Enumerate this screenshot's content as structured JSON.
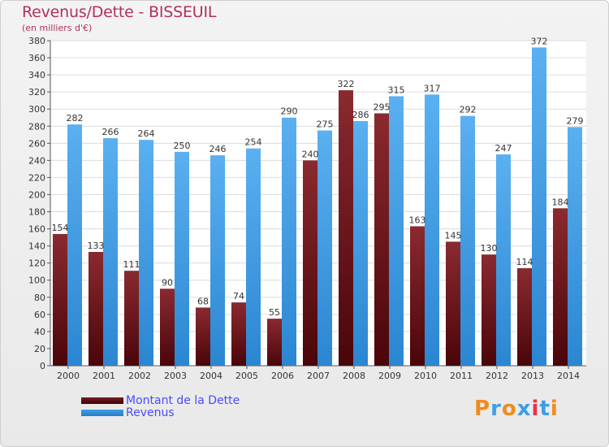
{
  "title": "Revenus/Dette - BISSEUIL",
  "subtitle": "(en milliers d'€)",
  "logo_text": "Proxiti",
  "colors": {
    "dette": "#7a1a22",
    "revenus": "#3c9ee6",
    "title": "#b03060",
    "legend_text": "#4a4aff"
  },
  "chart_data": {
    "type": "bar",
    "categories": [
      "2000",
      "2001",
      "2002",
      "2003",
      "2004",
      "2005",
      "2006",
      "2007",
      "2008",
      "2009",
      "2010",
      "2011",
      "2012",
      "2013",
      "2014"
    ],
    "series": [
      {
        "name": "Montant de la Dette",
        "values": [
          154,
          133,
          111,
          90,
          68,
          74,
          55,
          240,
          322,
          295,
          163,
          145,
          130,
          114,
          184
        ]
      },
      {
        "name": "Revenus",
        "values": [
          282,
          266,
          264,
          250,
          246,
          254,
          290,
          275,
          286,
          315,
          317,
          292,
          247,
          372,
          279
        ]
      }
    ],
    "ylim": [
      0,
      380
    ],
    "ytick_step": 20,
    "grid": true,
    "legend_position": "bottom-left"
  }
}
